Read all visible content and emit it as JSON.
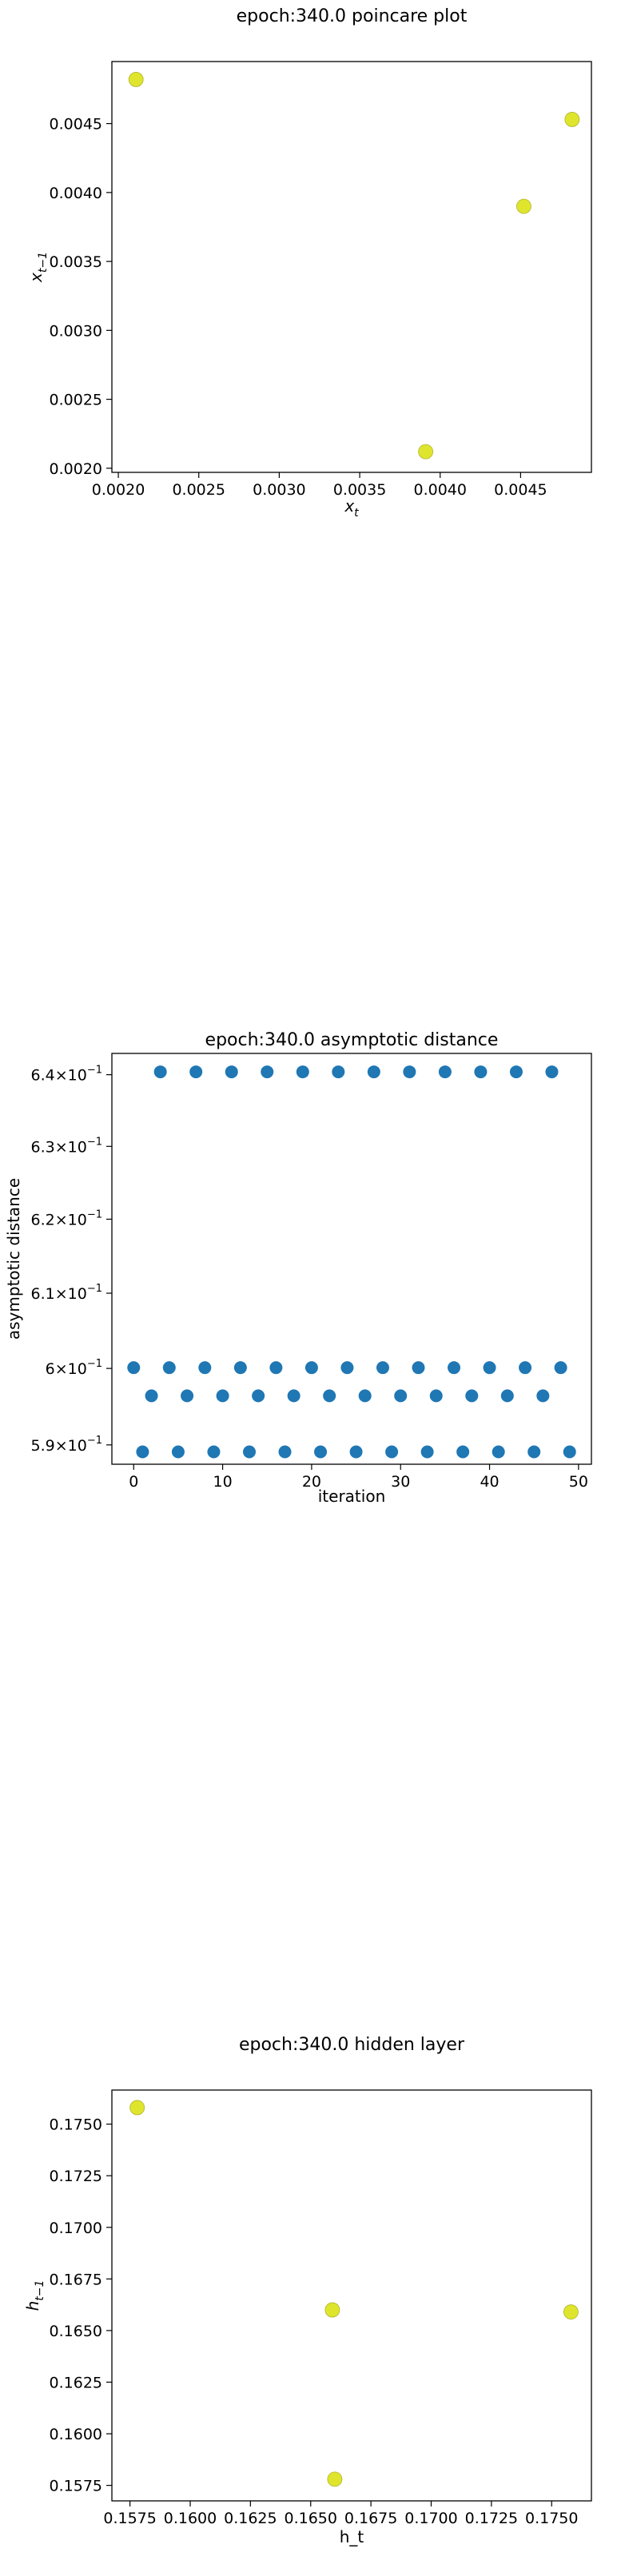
{
  "chart_data": [
    {
      "type": "scatter",
      "title": "epoch:340.0 poincare plot",
      "xlabel_main": "x",
      "xlabel_sub": "t",
      "ylabel_main": "x",
      "ylabel_sub": "t−1",
      "xlim": [
        0.00196,
        0.00494
      ],
      "ylim": [
        0.00197,
        0.00495
      ],
      "xticks": [
        0.002,
        0.0025,
        0.003,
        0.0035,
        0.004,
        0.0045
      ],
      "xtick_labels": [
        "0.0020",
        "0.0025",
        "0.0030",
        "0.0035",
        "0.0040",
        "0.0045"
      ],
      "yticks": [
        0.002,
        0.0025,
        0.003,
        0.0035,
        0.004,
        0.0045
      ],
      "ytick_labels": [
        "0.0020",
        "0.0025",
        "0.0030",
        "0.0035",
        "0.0040",
        "0.0045"
      ],
      "points": [
        [
          0.00211,
          0.00482
        ],
        [
          0.00391,
          0.00212
        ],
        [
          0.00452,
          0.0039
        ],
        [
          0.00482,
          0.00453
        ]
      ],
      "color": "#dfe52d",
      "edge_color": "#b0b52a",
      "grid": false
    },
    {
      "type": "scatter",
      "title": "epoch:340.0 asymptotic distance",
      "xlabel": "iteration",
      "ylabel": "asymptotic distance",
      "xlim": [
        -2.45,
        51.45
      ],
      "ylim": [
        0.5875,
        0.643
      ],
      "yscale": "log",
      "xticks": [
        0,
        10,
        20,
        30,
        40,
        50
      ],
      "xtick_labels": [
        "0",
        "10",
        "20",
        "30",
        "40",
        "50"
      ],
      "yticks": [
        0.59,
        0.6,
        0.61,
        0.62,
        0.63,
        0.64
      ],
      "ytick_labels": [
        {
          "mant": "5.9×10",
          "exp": "−1"
        },
        {
          "mant": "6×10",
          "exp": "−1"
        },
        {
          "mant": "6.1×10",
          "exp": "−1"
        },
        {
          "mant": "6.2×10",
          "exp": "−1"
        },
        {
          "mant": "6.3×10",
          "exp": "−1"
        },
        {
          "mant": "6.4×10",
          "exp": "−1"
        }
      ],
      "x": [
        0,
        1,
        2,
        3,
        4,
        5,
        6,
        7,
        8,
        9,
        10,
        11,
        12,
        13,
        14,
        15,
        16,
        17,
        18,
        19,
        20,
        21,
        22,
        23,
        24,
        25,
        26,
        27,
        28,
        29,
        30,
        31,
        32,
        33,
        34,
        35,
        36,
        37,
        38,
        39,
        40,
        41,
        42,
        43,
        44,
        45,
        46,
        47,
        48,
        49
      ],
      "y": [
        0.6001,
        0.5891,
        0.5964,
        0.6404,
        0.6001,
        0.5891,
        0.5964,
        0.6404,
        0.6001,
        0.5891,
        0.5964,
        0.6404,
        0.6001,
        0.5891,
        0.5964,
        0.6404,
        0.6001,
        0.5891,
        0.5964,
        0.6404,
        0.6001,
        0.5891,
        0.5964,
        0.6404,
        0.6001,
        0.5891,
        0.5964,
        0.6404,
        0.6001,
        0.5891,
        0.5964,
        0.6404,
        0.6001,
        0.5891,
        0.5964,
        0.6404,
        0.6001,
        0.5891,
        0.5964,
        0.6404,
        0.6001,
        0.5891,
        0.5964,
        0.6404,
        0.6001,
        0.5891,
        0.5964,
        0.6404,
        0.6001,
        0.5891
      ],
      "color": "#1f77b4",
      "grid": false
    },
    {
      "type": "scatter",
      "title": "epoch:340.0 hidden layer",
      "xlabel": "h_t",
      "ylabel_main": "h",
      "ylabel_sub": "t−1",
      "xlim": [
        0.15675,
        0.17665
      ],
      "ylim": [
        0.15675,
        0.17665
      ],
      "xticks": [
        0.1575,
        0.16,
        0.1625,
        0.165,
        0.1675,
        0.17,
        0.1725,
        0.175
      ],
      "xtick_labels": [
        "0.1575",
        "0.1600",
        "0.1625",
        "0.1650",
        "0.1675",
        "0.1700",
        "0.1725",
        "0.1750"
      ],
      "yticks": [
        0.1575,
        0.16,
        0.1625,
        0.165,
        0.1675,
        0.17,
        0.1725,
        0.175
      ],
      "ytick_labels": [
        "0.1575",
        "0.1600",
        "0.1625",
        "0.1650",
        "0.1675",
        "0.1700",
        "0.1725",
        "0.1750"
      ],
      "points": [
        [
          0.1578,
          0.1758
        ],
        [
          0.1659,
          0.166
        ],
        [
          0.166,
          0.1578
        ],
        [
          0.1758,
          0.1659
        ]
      ],
      "color": "#dfe52d",
      "edge_color": "#b0b52a",
      "grid": false
    }
  ]
}
